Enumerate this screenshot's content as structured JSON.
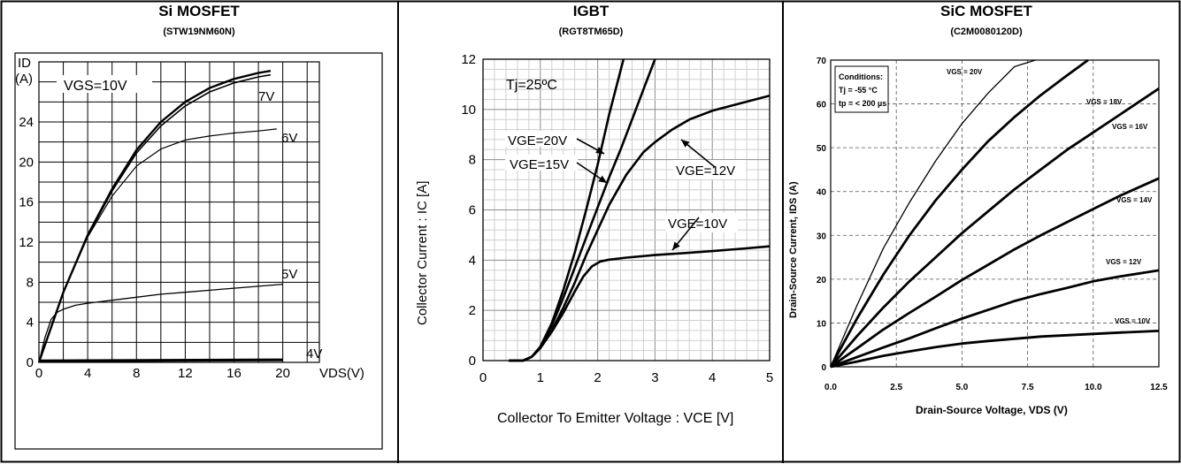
{
  "panels": [
    {
      "title": "Si MOSFET",
      "subtitle": "(STW19NM60N)",
      "chart_data": {
        "type": "line",
        "title": "Si MOSFET",
        "xlabel": "VDS(V)",
        "ylabel": "ID (A)",
        "xlim": [
          0,
          23
        ],
        "ylim": [
          0,
          30
        ],
        "xticks": [
          0,
          4,
          8,
          12,
          16,
          20
        ],
        "yticks": [
          0,
          4,
          8,
          12,
          16,
          20,
          24
        ],
        "grid": true,
        "annotation": "VGS=10V",
        "series": [
          {
            "name": "VGS=10V",
            "x": [
              0,
              1,
              2,
              4,
              6,
              8,
              10,
              12,
              14,
              16,
              18,
              19
            ],
            "y": [
              0,
              3.5,
              7,
              12.7,
              17.3,
              21.2,
              24,
              26,
              27.4,
              28.3,
              28.9,
              29.1
            ]
          },
          {
            "name": "7V",
            "x": [
              0,
              1,
              2,
              4,
              6,
              8,
              10,
              12,
              14,
              16,
              18,
              19
            ],
            "y": [
              0,
              3.5,
              7,
              12.6,
              17.1,
              20.9,
              23.6,
              25.6,
              27,
              27.9,
              28.5,
              28.7
            ]
          },
          {
            "name": "6V",
            "x": [
              0,
              1,
              2,
              4,
              6,
              8,
              10,
              12,
              14,
              16,
              18,
              19.5
            ],
            "y": [
              0,
              3.5,
              7,
              12.5,
              16.6,
              19.6,
              21.3,
              22.2,
              22.6,
              22.9,
              23.1,
              23.3
            ]
          },
          {
            "name": "5V",
            "x": [
              0,
              0.5,
              1,
              1.5,
              2,
              3,
              4,
              6,
              8,
              10,
              12,
              14,
              16,
              18,
              20
            ],
            "y": [
              0,
              2.5,
              4.3,
              5,
              5.3,
              5.7,
              5.9,
              6.2,
              6.5,
              6.8,
              7,
              7.2,
              7.4,
              7.6,
              7.8
            ]
          },
          {
            "name": "4V",
            "x": [
              0,
              20
            ],
            "y": [
              0.15,
              0.25
            ]
          }
        ]
      }
    },
    {
      "title": "IGBT",
      "subtitle": "(RGT8TM65D)",
      "chart_data": {
        "type": "line",
        "title": "IGBT",
        "xlabel": "Collector To Emitter Voltage : VCE [V]",
        "ylabel": "Collector Current : IC [A]",
        "xlim": [
          0,
          5
        ],
        "ylim": [
          0,
          12
        ],
        "xticks": [
          0,
          1,
          2,
          3,
          4,
          5
        ],
        "yticks": [
          0,
          2,
          4,
          6,
          8,
          10,
          12
        ],
        "grid": true,
        "annotation": "Tj=25ºC",
        "series": [
          {
            "name": "VGE=20V",
            "x": [
              0.45,
              0.7,
              0.85,
              1.0,
              1.2,
              1.4,
              1.6,
              1.8,
              2.0,
              2.2,
              2.45
            ],
            "y": [
              0,
              0,
              0.15,
              0.55,
              1.5,
              2.8,
              4.3,
              6,
              7.8,
              9.8,
              12
            ]
          },
          {
            "name": "VGE=15V",
            "x": [
              0.45,
              0.7,
              0.85,
              1.0,
              1.2,
              1.4,
              1.6,
              1.8,
              2.0,
              2.2,
              2.4,
              2.6,
              2.8,
              3.0
            ],
            "y": [
              0,
              0,
              0.15,
              0.55,
              1.4,
              2.5,
              3.7,
              4.9,
              6.1,
              7.3,
              8.4,
              9.6,
              10.8,
              12
            ]
          },
          {
            "name": "VGE=12V",
            "x": [
              0.45,
              0.7,
              0.85,
              1.0,
              1.2,
              1.4,
              1.6,
              1.8,
              2.0,
              2.2,
              2.5,
              2.8,
              3.0,
              3.3,
              3.6,
              4.0,
              4.5,
              5.0
            ],
            "y": [
              0,
              0,
              0.15,
              0.5,
              1.2,
              2.1,
              3.1,
              4.2,
              5.2,
              6.2,
              7.4,
              8.3,
              8.7,
              9.2,
              9.6,
              9.95,
              10.25,
              10.55
            ]
          },
          {
            "name": "VGE=10V",
            "x": [
              0.45,
              0.7,
              0.85,
              1.0,
              1.2,
              1.4,
              1.6,
              1.75,
              1.9,
              2.05,
              2.2,
              2.5,
              3.0,
              3.5,
              4.0,
              4.5,
              5.0
            ],
            "y": [
              0,
              0,
              0.15,
              0.5,
              1.15,
              1.9,
              2.75,
              3.35,
              3.75,
              3.95,
              4.02,
              4.1,
              4.2,
              4.28,
              4.36,
              4.45,
              4.55
            ]
          }
        ]
      }
    },
    {
      "title": "SiC MOSFET",
      "subtitle": "(C2M0080120D)",
      "chart_data": {
        "type": "line",
        "title": "SiC MOSFET",
        "xlabel": "Drain-Source Voltage, VDS (V)",
        "ylabel": "Drain-Source Current, IDS (A)",
        "xlim": [
          0,
          12.5
        ],
        "ylim": [
          0,
          70
        ],
        "xticks": [
          "0.0",
          "2.5",
          "5.0",
          "7.5",
          "10.0",
          "12.5"
        ],
        "yticks": [
          0,
          10,
          20,
          30,
          40,
          50,
          60,
          70
        ],
        "grid": true,
        "conditions": [
          "Conditions:",
          "Tj = -55 °C",
          "tp = < 200 µs"
        ],
        "series": [
          {
            "name": "VGS = 20V",
            "x": [
              0,
              1,
              2,
              3,
              4,
              5,
              6,
              7,
              7.8
            ],
            "y": [
              0,
              14,
              27,
              37.5,
              47,
              55.5,
              62.5,
              68.5,
              70
            ]
          },
          {
            "name": "VGS = 18V",
            "x": [
              0,
              1,
              2,
              3,
              4,
              5,
              6,
              7,
              8,
              9,
              9.8
            ],
            "y": [
              0,
              11,
              21,
              30,
              38,
              45,
              51.5,
              57,
              62,
              66.5,
              70
            ]
          },
          {
            "name": "VGS = 16V",
            "x": [
              0,
              1,
              2,
              3,
              4,
              5,
              6,
              7,
              8,
              9,
              10,
              11,
              12.5
            ],
            "y": [
              0,
              7,
              13.5,
              19.5,
              25,
              30.5,
              35.5,
              40.5,
              45,
              49.5,
              53.5,
              57.5,
              63.5
            ]
          },
          {
            "name": "VGS = 14V",
            "x": [
              0,
              1,
              2,
              3,
              4,
              5,
              6,
              7,
              8,
              9,
              10,
              11,
              12.5
            ],
            "y": [
              0,
              4.2,
              8.5,
              12.3,
              16,
              19.8,
              23.3,
              26.8,
              30,
              33,
              36,
              39,
              43
            ]
          },
          {
            "name": "VGS = 12V",
            "x": [
              0,
              1,
              2,
              3,
              4,
              5,
              6,
              7,
              8,
              9,
              10,
              11,
              12.5
            ],
            "y": [
              0,
              2.2,
              4.4,
              6.5,
              8.8,
              11,
              13,
              15,
              16.6,
              18,
              19.5,
              20.6,
              22
            ]
          },
          {
            "name": "VGS = 10V",
            "x": [
              0,
              1,
              2,
              3,
              4,
              5,
              6,
              7,
              8,
              9,
              10,
              11,
              12.5
            ],
            "y": [
              0,
              1.2,
              2.5,
              3.5,
              4.5,
              5.3,
              5.9,
              6.4,
              6.9,
              7.2,
              7.5,
              7.8,
              8.2
            ]
          }
        ]
      }
    }
  ],
  "labels": {
    "p1_ylabel_top": "ID",
    "p1_ylabel_unit": "(A)",
    "p1_vgs": "VGS=10V",
    "p1_xlabel": "VDS(V)",
    "p1_7v": "7V",
    "p1_6v": "6V",
    "p1_5v": "5V",
    "p1_4v": "4V",
    "p2_tj": "Tj=25ºC",
    "p2_20v": "VGE=20V",
    "p2_15v": "VGE=15V",
    "p2_12v": "VGE=12V",
    "p2_10v": "VGE=10V",
    "p2_ylabel": "Collector Current : IC [A]",
    "p2_xlabel": "Collector To Emitter Voltage : VCE [V]",
    "p3_cond1": "Conditions:",
    "p3_cond2": "Tj = -55 °C",
    "p3_cond3": "tp = < 200 µs",
    "p3_20v": "VGS = 20V",
    "p3_18v": "VGS = 18V",
    "p3_16v": "VGS = 16V",
    "p3_14v": "VGS = 14V",
    "p3_12v": "VGS = 12V",
    "p3_10v": "VGS = 10V",
    "p3_ylabel": "Drain-Source Current, IDS (A)",
    "p3_xlabel": "Drain-Source Voltage, VDS (V)"
  }
}
